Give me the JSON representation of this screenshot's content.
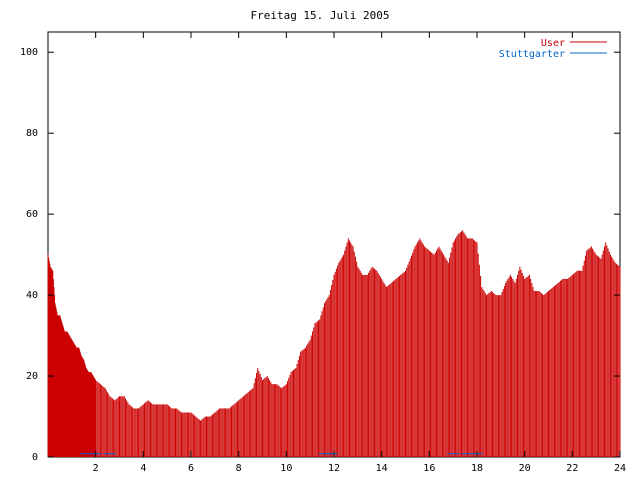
{
  "chart_data": {
    "type": "bar",
    "title": "Freitag 15. Juli 2005",
    "xlabel": "",
    "ylabel": "",
    "xlim": [
      0,
      24
    ],
    "ylim": [
      0,
      105
    ],
    "grid": false,
    "legend_position": "top-right",
    "x_ticks": [
      "2",
      "4",
      "6",
      "8",
      "10",
      "12",
      "14",
      "16",
      "18",
      "20",
      "22",
      "24"
    ],
    "y_ticks": [
      "0",
      "20",
      "40",
      "60",
      "80",
      "100"
    ],
    "colors": {
      "user": "#cc0000",
      "stuttgarter": "#0066cc"
    },
    "series": [
      {
        "name": "User",
        "x": [
          0.0,
          0.1,
          0.2,
          0.3,
          0.4,
          0.5,
          0.6,
          0.7,
          0.8,
          0.9,
          1.0,
          1.1,
          1.2,
          1.3,
          1.4,
          1.5,
          1.6,
          1.7,
          1.8,
          1.9,
          2.0,
          2.2,
          2.4,
          2.6,
          2.8,
          3.0,
          3.2,
          3.4,
          3.6,
          3.8,
          4.0,
          4.2,
          4.4,
          4.6,
          4.8,
          5.0,
          5.2,
          5.4,
          5.6,
          5.8,
          6.0,
          6.2,
          6.4,
          6.6,
          6.8,
          7.0,
          7.2,
          7.4,
          7.6,
          7.8,
          8.0,
          8.2,
          8.4,
          8.6,
          8.8,
          9.0,
          9.2,
          9.4,
          9.6,
          9.8,
          10.0,
          10.2,
          10.4,
          10.6,
          10.8,
          11.0,
          11.2,
          11.4,
          11.6,
          11.8,
          12.0,
          12.2,
          12.4,
          12.6,
          12.8,
          13.0,
          13.2,
          13.4,
          13.6,
          13.8,
          14.0,
          14.2,
          14.4,
          14.6,
          14.8,
          15.0,
          15.2,
          15.4,
          15.6,
          15.8,
          16.0,
          16.2,
          16.4,
          16.6,
          16.8,
          17.0,
          17.2,
          17.4,
          17.6,
          17.8,
          18.0,
          18.2,
          18.4,
          18.6,
          18.8,
          19.0,
          19.2,
          19.4,
          19.6,
          19.8,
          20.0,
          20.2,
          20.4,
          20.6,
          20.8,
          21.0,
          21.2,
          21.4,
          21.6,
          21.8,
          22.0,
          22.2,
          22.4,
          22.6,
          22.8,
          23.0,
          23.2,
          23.4,
          23.6,
          23.8,
          24.0
        ],
        "values": [
          50,
          47,
          46,
          38,
          35,
          35,
          33,
          31,
          31,
          30,
          29,
          28,
          27,
          27,
          25,
          24,
          22,
          21,
          21,
          20,
          19,
          18,
          17,
          15,
          14,
          15,
          15,
          13,
          12,
          12,
          13,
          14,
          13,
          13,
          13,
          13,
          12,
          12,
          11,
          11,
          11,
          10,
          9,
          10,
          10,
          11,
          12,
          12,
          12,
          13,
          14,
          15,
          16,
          17,
          22,
          19,
          20,
          18,
          18,
          17,
          18,
          21,
          22,
          26,
          27,
          29,
          33,
          34,
          38,
          40,
          45,
          48,
          50,
          54,
          52,
          47,
          45,
          45,
          47,
          46,
          44,
          42,
          43,
          44,
          45,
          46,
          49,
          52,
          54,
          52,
          51,
          50,
          52,
          50,
          48,
          53,
          55,
          56,
          54,
          54,
          53,
          42,
          40,
          41,
          40,
          40,
          43,
          45,
          43,
          47,
          44,
          45,
          41,
          41,
          40,
          41,
          42,
          43,
          44,
          44,
          45,
          46,
          46,
          51,
          52,
          50,
          49,
          53,
          50,
          48,
          47
        ]
      },
      {
        "name": "Stuttgarter",
        "x": [
          1.6,
          2.0,
          2.6,
          11.6,
          11.9,
          17.0,
          17.6,
          18.0
        ],
        "values": [
          0.8,
          0.8,
          0.8,
          0.8,
          0.8,
          0.8,
          0.8,
          0.8
        ]
      }
    ]
  }
}
